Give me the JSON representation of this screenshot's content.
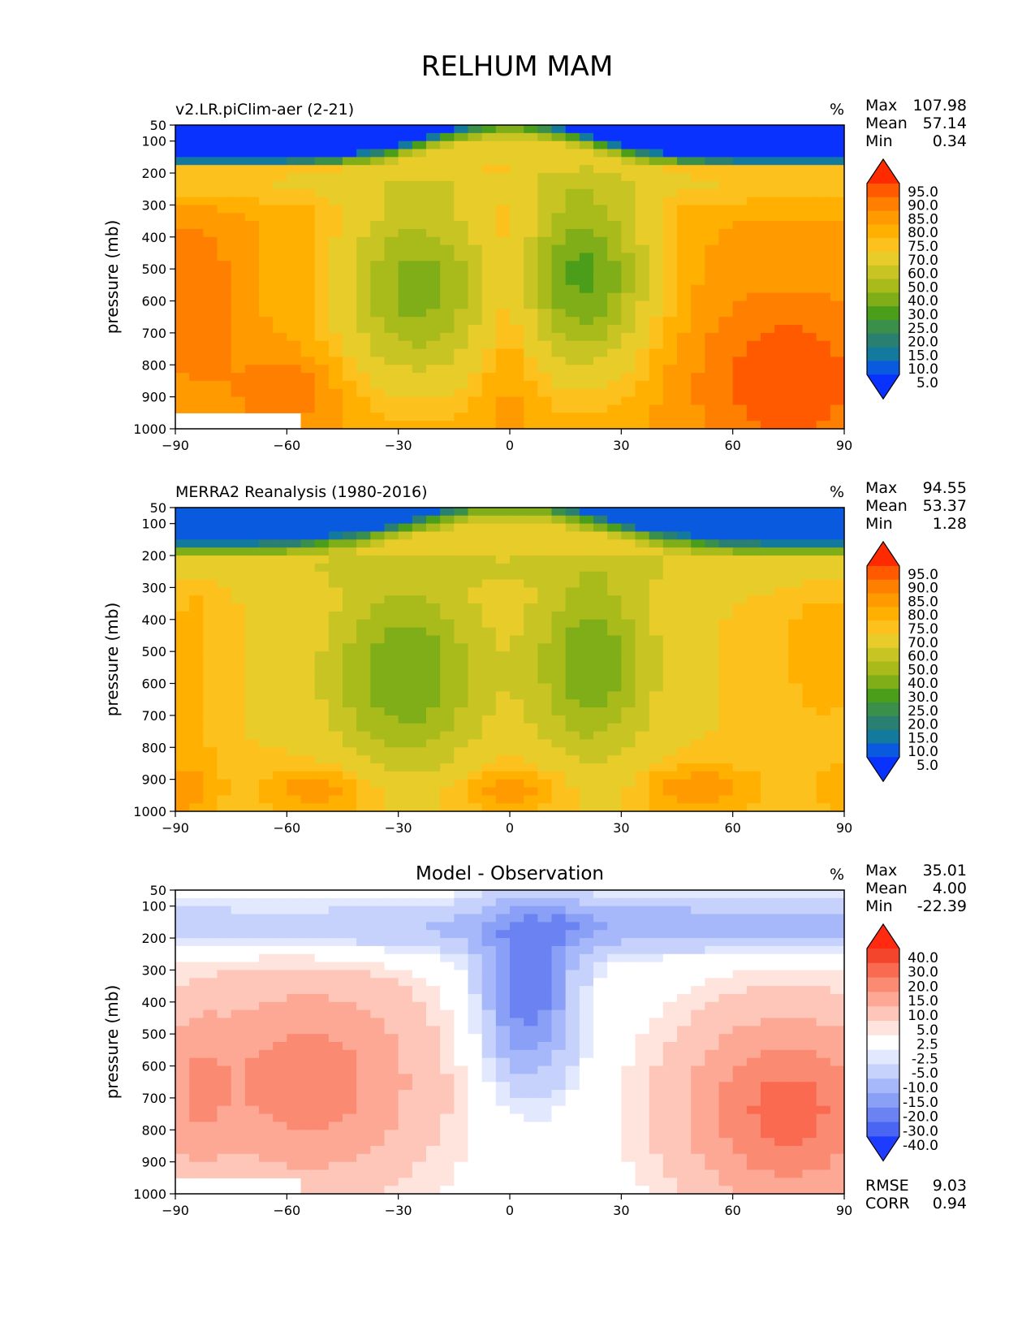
{
  "figure": {
    "title": "RELHUM MAM",
    "stat_labels": {
      "max": "Max",
      "mean": "Mean",
      "min": "Min",
      "rmse": "RMSE",
      "corr": "CORR"
    }
  },
  "chart_data": [
    {
      "type": "heatmap",
      "panel": "model",
      "title": "v2.LR.piClim-aer (2-21)",
      "units": "%",
      "ylabel": "pressure (mb)",
      "xlabel": "",
      "x_ticks": [
        "−90",
        "−60",
        "−30",
        "0",
        "30",
        "60",
        "90"
      ],
      "y_ticks": [
        "50",
        "100",
        "200",
        "300",
        "400",
        "500",
        "600",
        "700",
        "800",
        "900",
        "1000"
      ],
      "xlim": [
        -90,
        90
      ],
      "ylim": [
        1000,
        50
      ],
      "stats": {
        "max": "107.98",
        "mean": "57.14",
        "min": "0.34"
      },
      "colorbar": {
        "levels": [
          "95.0",
          "90.0",
          "85.0",
          "80.0",
          "75.0",
          "70.0",
          "60.0",
          "50.0",
          "40.0",
          "30.0",
          "25.0",
          "20.0",
          "15.0",
          "10.0",
          "5.0"
        ],
        "colors": [
          "#ff2a00",
          "#ff5a00",
          "#ff7f00",
          "#ff9a00",
          "#ffb000",
          "#fcc11d",
          "#e8cc2a",
          "#c8c423",
          "#a8bb1a",
          "#7fae18",
          "#4a9e1a",
          "#3a8f4a",
          "#2a8070",
          "#137a9e",
          "#0a5ae0",
          "#0a32ff"
        ]
      },
      "stats_mode": "abs",
      "profile": "model"
    },
    {
      "type": "heatmap",
      "panel": "obs",
      "title": "MERRA2 Reanalysis (1980-2016)",
      "units": "%",
      "ylabel": "pressure (mb)",
      "xlabel": "",
      "x_ticks": [
        "−90",
        "−60",
        "−30",
        "0",
        "30",
        "60",
        "90"
      ],
      "y_ticks": [
        "50",
        "100",
        "200",
        "300",
        "400",
        "500",
        "600",
        "700",
        "800",
        "900",
        "1000"
      ],
      "xlim": [
        -90,
        90
      ],
      "ylim": [
        1000,
        50
      ],
      "stats": {
        "max": "94.55",
        "mean": "53.37",
        "min": "1.28"
      },
      "colorbar": {
        "levels": [
          "95.0",
          "90.0",
          "85.0",
          "80.0",
          "75.0",
          "70.0",
          "60.0",
          "50.0",
          "40.0",
          "30.0",
          "25.0",
          "20.0",
          "15.0",
          "10.0",
          "5.0"
        ],
        "colors": [
          "#ff2a00",
          "#ff5a00",
          "#ff7f00",
          "#ff9a00",
          "#ffb000",
          "#fcc11d",
          "#e8cc2a",
          "#c8c423",
          "#a8bb1a",
          "#7fae18",
          "#4a9e1a",
          "#3a8f4a",
          "#2a8070",
          "#137a9e",
          "#0a5ae0",
          "#0a32ff"
        ]
      },
      "stats_mode": "abs",
      "profile": "obs"
    },
    {
      "type": "heatmap",
      "panel": "diff",
      "title": "Model - Observation",
      "units": "%",
      "ylabel": "pressure (mb)",
      "xlabel": "",
      "x_ticks": [
        "−90",
        "−60",
        "−30",
        "0",
        "30",
        "60",
        "90"
      ],
      "y_ticks": [
        "50",
        "100",
        "200",
        "300",
        "400",
        "500",
        "600",
        "700",
        "800",
        "900",
        "1000"
      ],
      "xlim": [
        -90,
        90
      ],
      "ylim": [
        1000,
        50
      ],
      "stats": {
        "max": "35.01",
        "mean": "4.00",
        "min": "-22.39",
        "rmse": "9.03",
        "corr": "0.94"
      },
      "colorbar": {
        "levels": [
          "40.0",
          "30.0",
          "20.0",
          "15.0",
          "10.0",
          "5.0",
          "2.5",
          "-2.5",
          "-5.0",
          "-10.0",
          "-15.0",
          "-20.0",
          "-30.0",
          "-40.0"
        ],
        "colors": [
          "#ff2a10",
          "#f3452b",
          "#fa6a50",
          "#fb8a72",
          "#fca894",
          "#fdc6b8",
          "#fee4dc",
          "#ffffff",
          "#e2e8fd",
          "#c6d2fc",
          "#a6b8fa",
          "#8aa0f7",
          "#6a82f2",
          "#4a64f4",
          "#1e3cff"
        ]
      },
      "stats_mode": "diff",
      "profile": "diff"
    }
  ]
}
